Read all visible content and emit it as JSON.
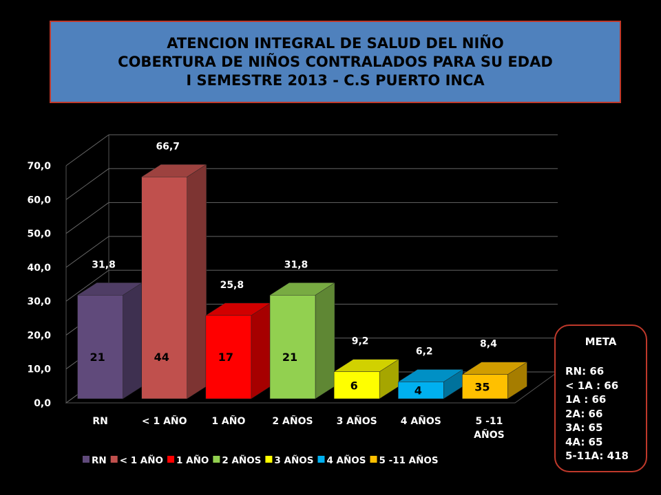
{
  "header": {
    "lines": [
      "ATENCION INTEGRAL DE SALUD DEL NIÑO",
      "COBERTURA DE NIÑOS CONTRALADOS PARA SU EDAD",
      "I SEMESTRE 2013 - C.S PUERTO INCA"
    ]
  },
  "chart_data": {
    "type": "bar",
    "title": "",
    "xlabel": "",
    "ylabel": "",
    "ylim": [
      0,
      70
    ],
    "yticks": [
      "0,0",
      "10,0",
      "20,0",
      "30,0",
      "40,0",
      "50,0",
      "60,0",
      "70,0"
    ],
    "grid": true,
    "legend": "bottom",
    "categories": [
      "RN",
      "< 1 AÑO",
      "1 AÑO",
      "2 AÑOS",
      "3 AÑOS",
      "4 AÑOS",
      "5 -11 AÑOS"
    ],
    "values": [
      31.8,
      66.7,
      25.8,
      31.8,
      9.2,
      6.2,
      8.4
    ],
    "value_labels": [
      "31,8",
      "66,7",
      "25,8",
      "31,8",
      "9,2",
      "6,2",
      "8,4"
    ],
    "counts": [
      "21",
      "44",
      "17",
      "21",
      "6",
      "4",
      "35"
    ],
    "colors": [
      "#604a7b",
      "#c0504d",
      "#ff0000",
      "#92d050",
      "#ffff00",
      "#00b0f0",
      "#ffc000"
    ],
    "count_text_colors": [
      "#000000",
      "#000000",
      "#000000",
      "#000000",
      "#000000",
      "#000000",
      "#000000"
    ]
  },
  "meta": {
    "title": "META",
    "items": [
      "RN:  66",
      "< 1A : 66",
      "1A : 66",
      "2A: 66",
      "3A:  65",
      "4A:  65",
      "5-11A: 418"
    ]
  }
}
